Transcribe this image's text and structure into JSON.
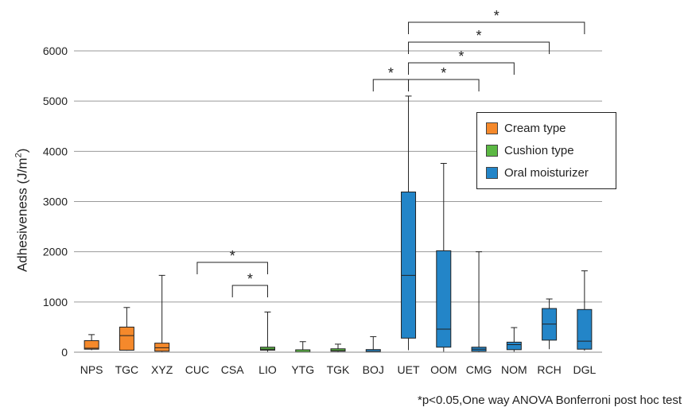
{
  "chart_data": {
    "type": "boxplot",
    "title": "",
    "xlabel": "",
    "ylabel": "Adhesiveness (J/m",
    "ylabel_sup": "2",
    "ylabel_suffix": ")",
    "ylim": [
      0,
      6000
    ],
    "yticks": [
      "0",
      "1000",
      "2000",
      "3000",
      "4000",
      "5000",
      "6000"
    ],
    "grid": true,
    "legend_position": "top-right",
    "categories": [
      "NPS",
      "TGC",
      "XYZ",
      "CUC",
      "CSA",
      "LIO",
      "YTG",
      "TGK",
      "BOJ",
      "UET",
      "OOM",
      "CMG",
      "NOM",
      "RCH",
      "DGL"
    ],
    "series": [
      {
        "name": "Cream type",
        "color": "#f5892b",
        "categories": [
          "NPS",
          "TGC",
          "XYZ"
        ]
      },
      {
        "name": "Cushion type",
        "color": "#5bb843",
        "categories": [
          "CUC",
          "CSA",
          "LIO",
          "YTG",
          "TGK"
        ]
      },
      {
        "name": "Oral moisturizer",
        "color": "#2385c8",
        "categories": [
          "BOJ",
          "UET",
          "OOM",
          "CMG",
          "NOM",
          "RCH",
          "DGL"
        ]
      }
    ],
    "boxes": [
      {
        "category": "NPS",
        "group": 0,
        "min": 40,
        "q1": 60,
        "median": 80,
        "q3": 230,
        "max": 350
      },
      {
        "category": "TGC",
        "group": 0,
        "min": 30,
        "q1": 40,
        "median": 330,
        "q3": 500,
        "max": 890
      },
      {
        "category": "XYZ",
        "group": 0,
        "min": 0,
        "q1": 20,
        "median": 90,
        "q3": 180,
        "max": 1530
      },
      {
        "category": "CUC",
        "group": 1,
        "min": 0,
        "q1": 0,
        "median": 0,
        "q3": 0,
        "max": 0
      },
      {
        "category": "CSA",
        "group": 1,
        "min": 0,
        "q1": 0,
        "median": 0,
        "q3": 0,
        "max": 0
      },
      {
        "category": "LIO",
        "group": 1,
        "min": 10,
        "q1": 40,
        "median": 60,
        "q3": 100,
        "max": 800
      },
      {
        "category": "YTG",
        "group": 1,
        "min": 0,
        "q1": 0,
        "median": 5,
        "q3": 15,
        "max": 210
      },
      {
        "category": "TGK",
        "group": 1,
        "min": 0,
        "q1": 20,
        "median": 30,
        "q3": 50,
        "max": 160
      },
      {
        "category": "BOJ",
        "group": 2,
        "min": 0,
        "q1": 5,
        "median": 15,
        "q3": 30,
        "max": 310
      },
      {
        "category": "UET",
        "group": 2,
        "min": 40,
        "q1": 280,
        "median": 1530,
        "q3": 3190,
        "max": 5100
      },
      {
        "category": "OOM",
        "group": 2,
        "min": 10,
        "q1": 100,
        "median": 460,
        "q3": 2020,
        "max": 3760
      },
      {
        "category": "CMG",
        "group": 2,
        "min": 0,
        "q1": 20,
        "median": 60,
        "q3": 100,
        "max": 2000
      },
      {
        "category": "NOM",
        "group": 2,
        "min": 10,
        "q1": 50,
        "median": 150,
        "q3": 200,
        "max": 490
      },
      {
        "category": "RCH",
        "group": 2,
        "min": 60,
        "q1": 240,
        "median": 560,
        "q3": 870,
        "max": 1060
      },
      {
        "category": "DGL",
        "group": 2,
        "min": 30,
        "q1": 60,
        "median": 220,
        "q3": 850,
        "max": 1620
      }
    ],
    "significance": [
      {
        "from": "CUC",
        "to": "LIO",
        "label": "*"
      },
      {
        "from": "CSA",
        "to": "LIO",
        "label": "*"
      },
      {
        "from": "BOJ",
        "to": "UET",
        "label": "*"
      },
      {
        "from": "UET",
        "to": "CMG",
        "label": "*"
      },
      {
        "from": "UET",
        "to": "NOM",
        "label": "*"
      },
      {
        "from": "UET",
        "to": "RCH",
        "label": "*"
      },
      {
        "from": "UET",
        "to": "DGL",
        "label": "*"
      }
    ]
  },
  "footnote": "*p<0.05,One way ANOVA Bonferroni post hoc test",
  "legend": {
    "items": [
      {
        "label": "Cream type",
        "color": "#f5892b"
      },
      {
        "label": "Cushion type",
        "color": "#5bb843"
      },
      {
        "label": "Oral moisturizer",
        "color": "#2385c8"
      }
    ]
  }
}
